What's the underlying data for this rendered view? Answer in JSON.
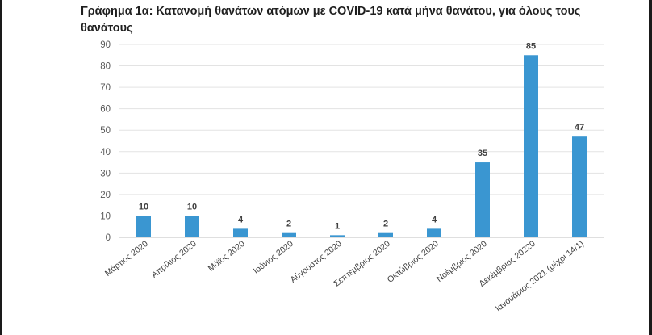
{
  "title": "Γράφημα 1α: Κατανομή θανάτων ατόμων με COVID-19 κατά μήνα θανάτου, για όλους τους θανάτους",
  "chart_data": {
    "type": "bar",
    "title": "Γράφημα 1α: Κατανομή θανάτων ατόμων με COVID-19 κατά μήνα θανάτου, για όλους τους θανάτους",
    "categories": [
      "Μάρτιος 2020",
      "Απρίλιος 2020",
      "Μάϊος 2020",
      "Ιούνιος 2020",
      "Αύγουστος 2020",
      "Σεπτέμβριος 2020",
      "Οκτώβριος 2020",
      "Νοέμβριος 2020",
      "Δεκέμβριος 20220",
      "Ιανουάριος 2021 (μέχρι 14/1)"
    ],
    "values": [
      10,
      10,
      4,
      2,
      1,
      2,
      4,
      35,
      85,
      47
    ],
    "yticks": [
      "0",
      "10",
      "20",
      "30",
      "40",
      "50",
      "60",
      "70",
      "80",
      "90"
    ],
    "ylim": [
      0,
      90
    ],
    "xlabel": "",
    "ylabel": "",
    "grid": true,
    "bar_color": "#3a96d1"
  }
}
